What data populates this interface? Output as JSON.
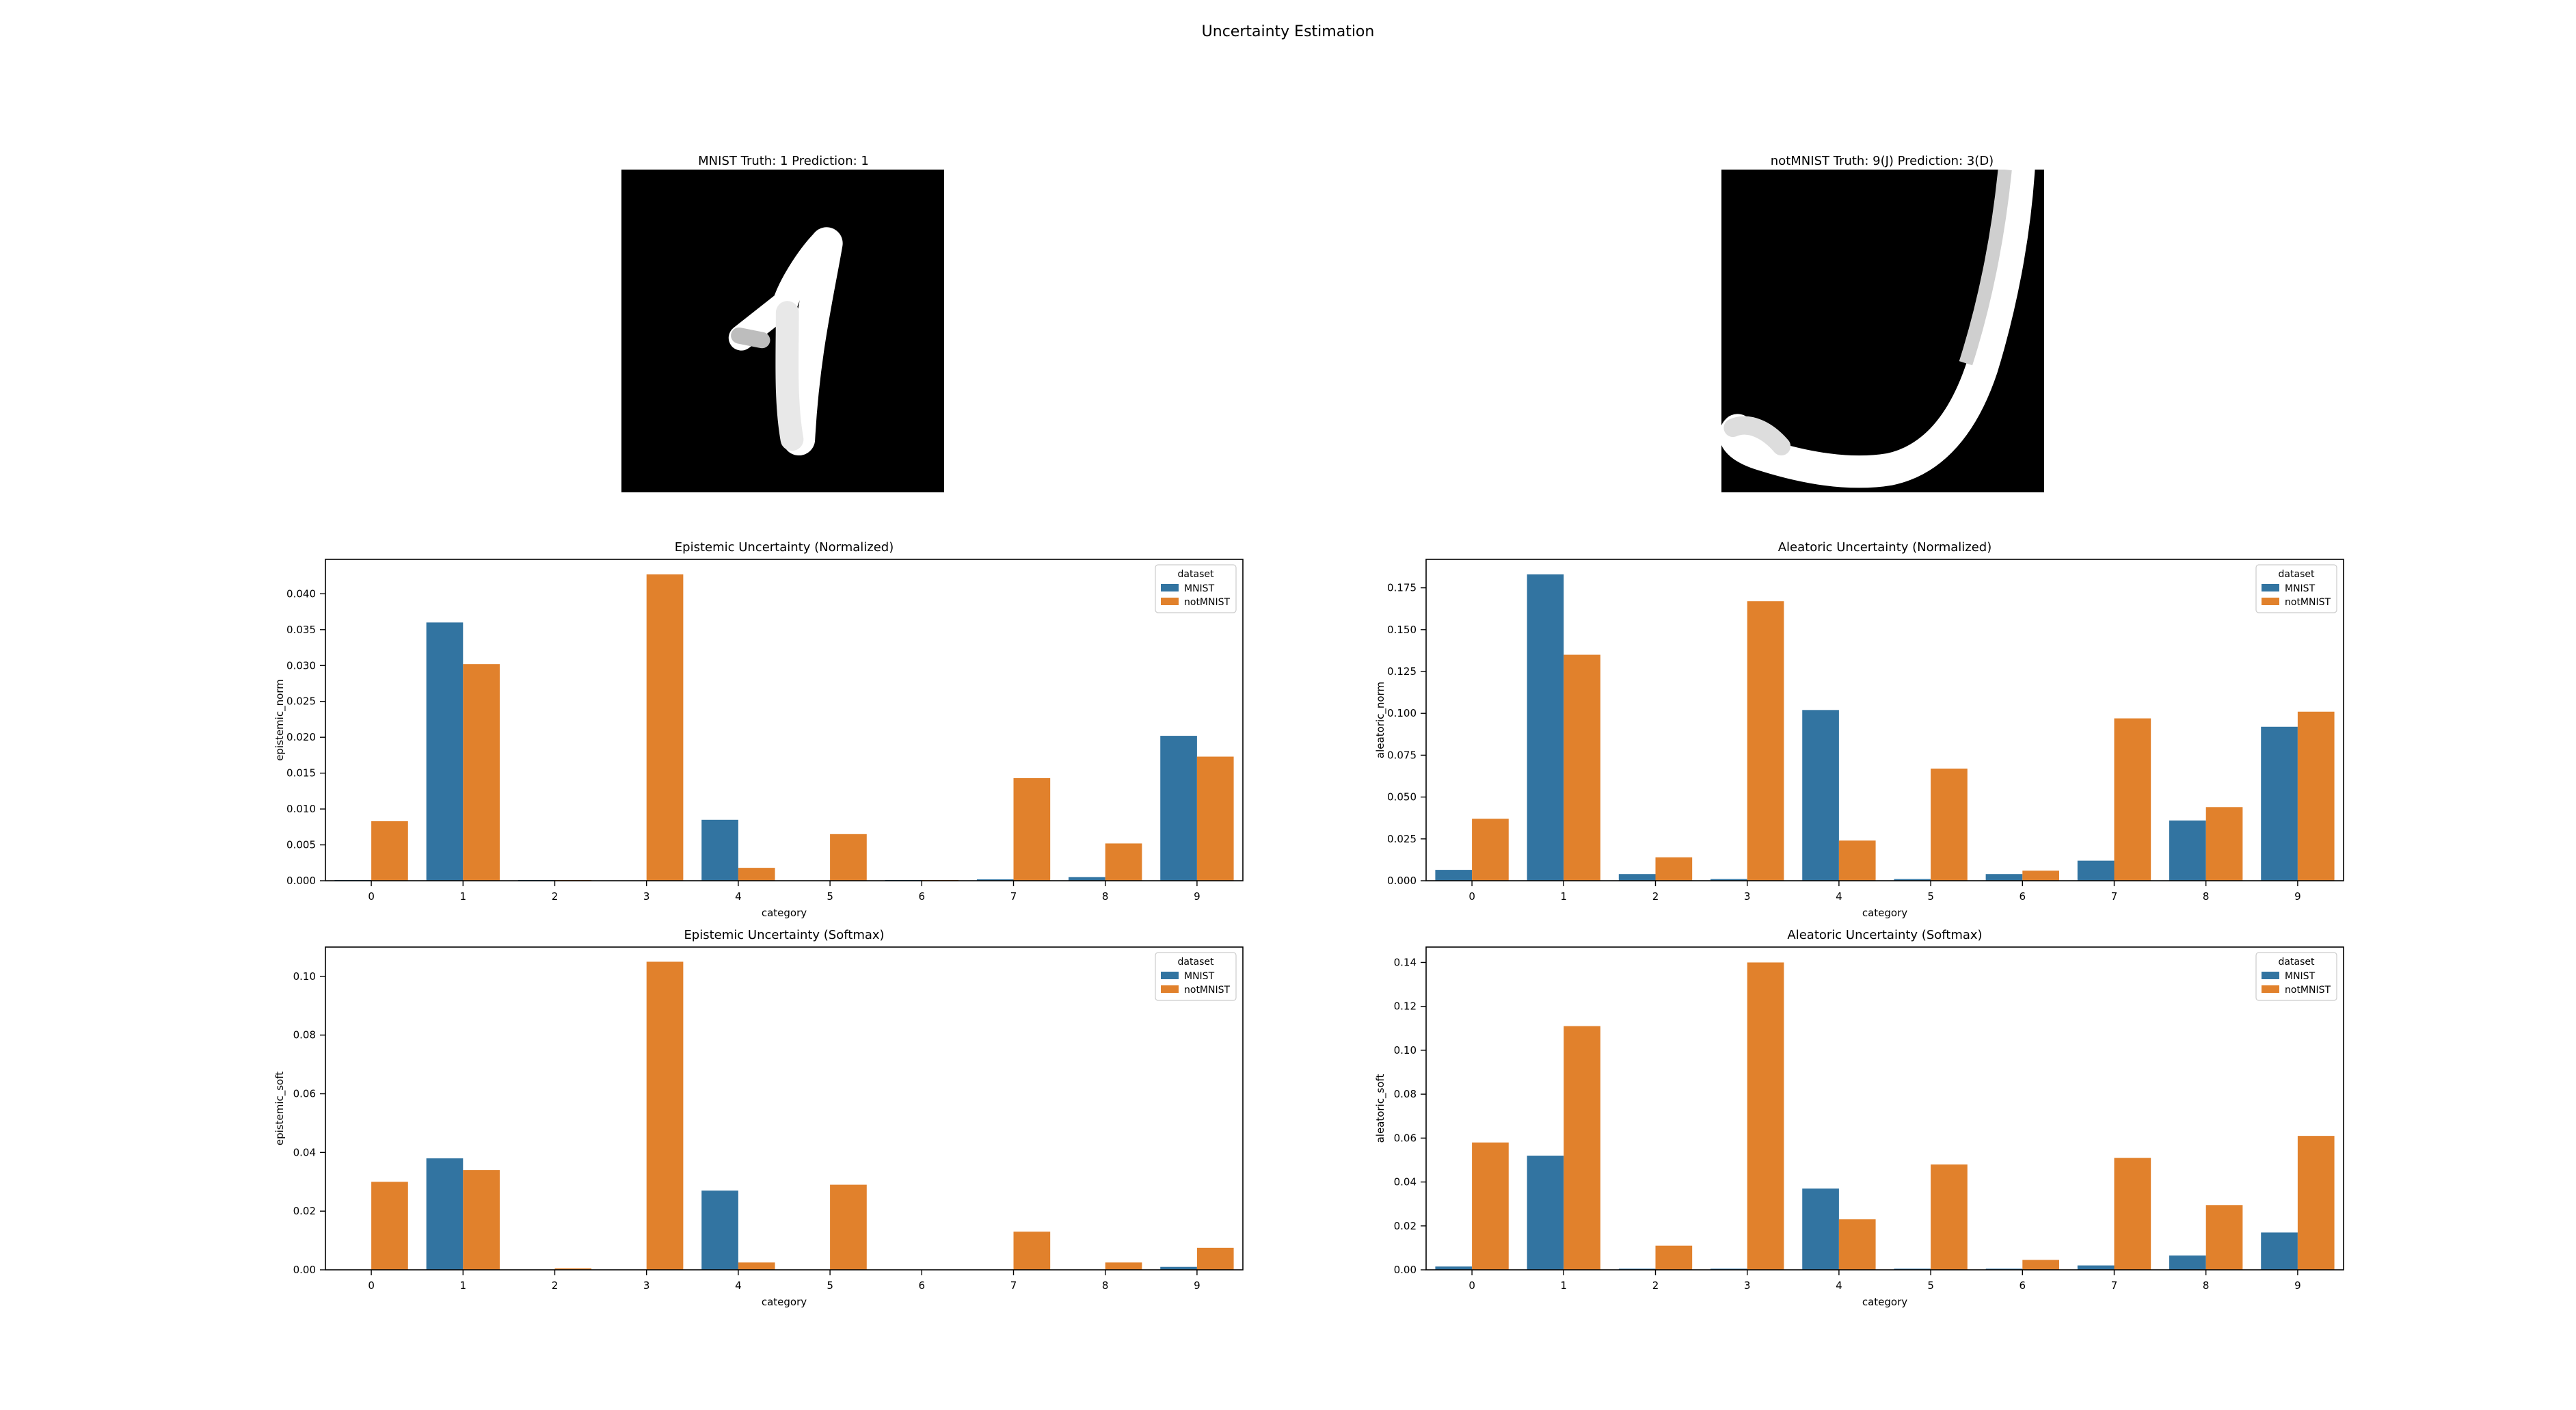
{
  "figure": {
    "title": "Uncertainty Estimation"
  },
  "images": [
    {
      "title": "MNIST Truth: 1 Prediction: 1",
      "glyph": "digit-one"
    },
    {
      "title": "notMNIST Truth: 9(J) Prediction: 3(D)",
      "glyph": "letter-j"
    }
  ],
  "colors": {
    "MNIST": "#3274a1",
    "notMNIST": "#e1812c"
  },
  "chart_data": [
    {
      "type": "bar",
      "title": "Epistemic Uncertainty (Normalized)",
      "xlabel": "category",
      "ylabel": "epistemic_norm",
      "categories": [
        "0",
        "1",
        "2",
        "3",
        "4",
        "5",
        "6",
        "7",
        "8",
        "9"
      ],
      "ylim": [
        0,
        0.0448
      ],
      "yticks": [
        "0.000",
        "0.005",
        "0.010",
        "0.015",
        "0.020",
        "0.025",
        "0.030",
        "0.035",
        "0.040"
      ],
      "legend": {
        "title": "dataset",
        "placement": "top-right"
      },
      "series": [
        {
          "name": "MNIST",
          "values": [
            0.0001,
            0.036,
            0.0001,
            0.0,
            0.0085,
            0.0,
            0.0001,
            0.0002,
            0.0005,
            0.0202
          ]
        },
        {
          "name": "notMNIST",
          "values": [
            0.0083,
            0.0302,
            0.0001,
            0.0427,
            0.0018,
            0.0065,
            0.0001,
            0.0143,
            0.0052,
            0.0173
          ]
        }
      ]
    },
    {
      "type": "bar",
      "title": "Aleatoric Uncertainty (Normalized)",
      "xlabel": "category",
      "ylabel": "aleatoric_norm",
      "categories": [
        "0",
        "1",
        "2",
        "3",
        "4",
        "5",
        "6",
        "7",
        "8",
        "9"
      ],
      "ylim": [
        0,
        0.192
      ],
      "yticks": [
        "0.000",
        "0.025",
        "0.050",
        "0.075",
        "0.100",
        "0.125",
        "0.150",
        "0.175"
      ],
      "legend": {
        "title": "dataset",
        "placement": "top-right"
      },
      "series": [
        {
          "name": "MNIST",
          "values": [
            0.0065,
            0.183,
            0.004,
            0.001,
            0.102,
            0.001,
            0.004,
            0.012,
            0.036,
            0.092
          ]
        },
        {
          "name": "notMNIST",
          "values": [
            0.037,
            0.135,
            0.014,
            0.167,
            0.024,
            0.067,
            0.006,
            0.097,
            0.044,
            0.101
          ]
        }
      ]
    },
    {
      "type": "bar",
      "title": "Epistemic Uncertainty (Softmax)",
      "xlabel": "category",
      "ylabel": "epistemic_soft",
      "categories": [
        "0",
        "1",
        "2",
        "3",
        "4",
        "5",
        "6",
        "7",
        "8",
        "9"
      ],
      "ylim": [
        0,
        0.11
      ],
      "yticks": [
        "0.00",
        "0.02",
        "0.04",
        "0.06",
        "0.08",
        "0.10"
      ],
      "legend": {
        "title": "dataset",
        "placement": "top-right"
      },
      "series": [
        {
          "name": "MNIST",
          "values": [
            0.0,
            0.038,
            0.0,
            0.0,
            0.027,
            0.0,
            0.0,
            0.0,
            0.0,
            0.001
          ]
        },
        {
          "name": "notMNIST",
          "values": [
            0.03,
            0.034,
            0.0005,
            0.105,
            0.0025,
            0.029,
            0.0,
            0.013,
            0.0025,
            0.0075
          ]
        }
      ]
    },
    {
      "type": "bar",
      "title": "Aleatoric Uncertainty (Softmax)",
      "xlabel": "category",
      "ylabel": "aleatoric_soft",
      "categories": [
        "0",
        "1",
        "2",
        "3",
        "4",
        "5",
        "6",
        "7",
        "8",
        "9"
      ],
      "ylim": [
        0,
        0.147
      ],
      "yticks": [
        "0.00",
        "0.02",
        "0.04",
        "0.06",
        "0.08",
        "0.10",
        "0.12",
        "0.14"
      ],
      "legend": {
        "title": "dataset",
        "placement": "top-right"
      },
      "series": [
        {
          "name": "MNIST",
          "values": [
            0.0015,
            0.052,
            0.0005,
            0.0005,
            0.037,
            0.0005,
            0.0005,
            0.002,
            0.0065,
            0.017
          ]
        },
        {
          "name": "notMNIST",
          "values": [
            0.058,
            0.111,
            0.011,
            0.14,
            0.023,
            0.048,
            0.0045,
            0.051,
            0.0295,
            0.061
          ]
        }
      ]
    }
  ]
}
